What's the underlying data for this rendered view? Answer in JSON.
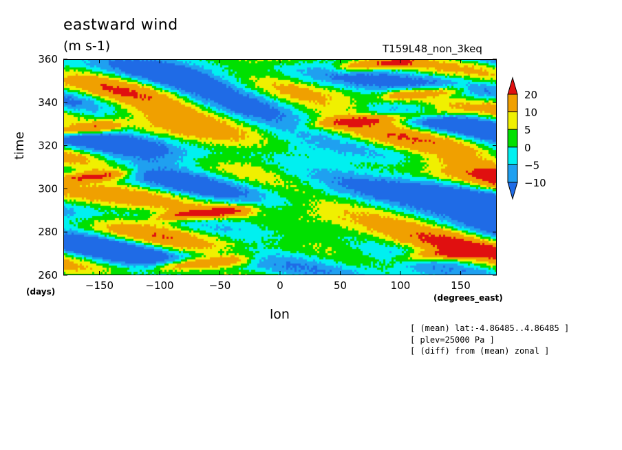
{
  "chart_data": {
    "type": "heatmap",
    "title": "eastward wind",
    "units": "(m s-1)",
    "run_label": "T159L48_non_3keq",
    "xlabel": "lon",
    "ylabel": "time",
    "x_unit_label": "(degrees_east)",
    "y_unit_label": "(days)",
    "xlim": [
      -180,
      180
    ],
    "ylim": [
      260,
      360
    ],
    "x_ticks": [
      -150,
      -100,
      -50,
      0,
      50,
      100,
      150
    ],
    "y_ticks": [
      260,
      280,
      300,
      320,
      340,
      360
    ],
    "color_levels": [
      {
        "range": "< -10",
        "color": "#1f6be6"
      },
      {
        "range": "-10 to -5",
        "color": "#1fa0f0"
      },
      {
        "range": "-5 to 0",
        "color": "#00f0f0"
      },
      {
        "range": "0 to 5",
        "color": "#00e000"
      },
      {
        "range": "5 to 10",
        "color": "#f0f000"
      },
      {
        "range": "10 to 20",
        "color": "#f0a000"
      },
      {
        "range": "> 20",
        "color": "#e01010"
      }
    ],
    "colorbar_labels": [
      "20",
      "10",
      "5",
      "0",
      "−5",
      "−10"
    ],
    "feature_streaks": [
      {
        "lon_start": -180,
        "lon_end": -150,
        "time": 328,
        "value": 22
      },
      {
        "lon_start": -180,
        "lon_end": -140,
        "time": 306,
        "value": 21
      },
      {
        "lon_start": -90,
        "lon_end": -40,
        "time": 289,
        "value": 23
      },
      {
        "lon_start": -90,
        "lon_end": -40,
        "time": 266,
        "value": 21
      },
      {
        "lon_start": 60,
        "lon_end": 100,
        "time": 358,
        "value": 19
      },
      {
        "lon_start": 40,
        "lon_end": 130,
        "time": 333,
        "value": 16
      },
      {
        "lon_start": 100,
        "lon_end": 140,
        "time": 345,
        "value": 18
      },
      {
        "lon_start": 110,
        "lon_end": 160,
        "time": 270,
        "value": 16
      }
    ]
  },
  "notes": [
    "[ (mean) lat:-4.86485..4.86485 ]",
    "[ plev=25000 Pa ]",
    "[ (diff) from (mean) zonal ]"
  ]
}
